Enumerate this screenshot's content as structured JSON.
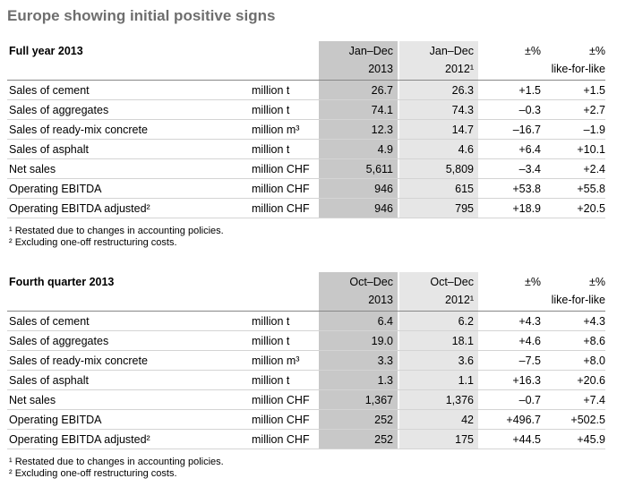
{
  "title": "Europe showing initial positive signs",
  "sections": [
    {
      "heading": "Full year 2013",
      "col_cur_1": "Jan–Dec",
      "col_cur_2": "2013",
      "col_prev_1": "Jan–Dec",
      "col_prev_2": "2012¹",
      "col_chg_1": "±%",
      "col_chg_2": "",
      "col_lfl_1": "±%",
      "col_lfl_2": "like-for-like",
      "rows": [
        {
          "label": "Sales of cement",
          "unit": "million t",
          "cur": "26.7",
          "prev": "26.3",
          "chg": "+1.5",
          "lfl": "+1.5"
        },
        {
          "label": "Sales of aggregates",
          "unit": "million t",
          "cur": "74.1",
          "prev": "74.3",
          "chg": "–0.3",
          "lfl": "+2.7"
        },
        {
          "label": "Sales of ready-mix concrete",
          "unit": "million m³",
          "cur": "12.3",
          "prev": "14.7",
          "chg": "–16.7",
          "lfl": "–1.9"
        },
        {
          "label": "Sales of asphalt",
          "unit": "million t",
          "cur": "4.9",
          "prev": "4.6",
          "chg": "+6.4",
          "lfl": "+10.1"
        },
        {
          "label": "Net sales",
          "unit": "million CHF",
          "cur": "5,611",
          "prev": "5,809",
          "chg": "–3.4",
          "lfl": "+2.4"
        },
        {
          "label": "Operating EBITDA",
          "unit": "million CHF",
          "cur": "946",
          "prev": "615",
          "chg": "+53.8",
          "lfl": "+55.8"
        },
        {
          "label": "Operating EBITDA adjusted²",
          "unit": "million CHF",
          "cur": "946",
          "prev": "795",
          "chg": "+18.9",
          "lfl": "+20.5"
        }
      ],
      "note_1": "¹ Restated due to changes in accounting policies.",
      "note_2": "² Excluding one-off restructuring costs."
    },
    {
      "heading": "Fourth quarter 2013",
      "col_cur_1": "Oct–Dec",
      "col_cur_2": "2013",
      "col_prev_1": "Oct–Dec",
      "col_prev_2": "2012¹",
      "col_chg_1": "±%",
      "col_chg_2": "",
      "col_lfl_1": "±%",
      "col_lfl_2": "like-for-like",
      "rows": [
        {
          "label": "Sales of cement",
          "unit": "million t",
          "cur": "6.4",
          "prev": "6.2",
          "chg": "+4.3",
          "lfl": "+4.3"
        },
        {
          "label": "Sales of aggregates",
          "unit": "million t",
          "cur": "19.0",
          "prev": "18.1",
          "chg": "+4.6",
          "lfl": "+8.6"
        },
        {
          "label": "Sales of ready-mix concrete",
          "unit": "million m³",
          "cur": "3.3",
          "prev": "3.6",
          "chg": "–7.5",
          "lfl": "+8.0"
        },
        {
          "label": "Sales of asphalt",
          "unit": "million t",
          "cur": "1.3",
          "prev": "1.1",
          "chg": "+16.3",
          "lfl": "+20.6"
        },
        {
          "label": "Net sales",
          "unit": "million CHF",
          "cur": "1,367",
          "prev": "1,376",
          "chg": "–0.7",
          "lfl": "+7.4"
        },
        {
          "label": "Operating EBITDA",
          "unit": "million CHF",
          "cur": "252",
          "prev": "42",
          "chg": "+496.7",
          "lfl": "+502.5"
        },
        {
          "label": "Operating EBITDA adjusted²",
          "unit": "million CHF",
          "cur": "252",
          "prev": "175",
          "chg": "+44.5",
          "lfl": "+45.9"
        }
      ],
      "note_1": "¹ Restated due to changes in accounting policies.",
      "note_2": "² Excluding one-off restructuring costs."
    }
  ]
}
